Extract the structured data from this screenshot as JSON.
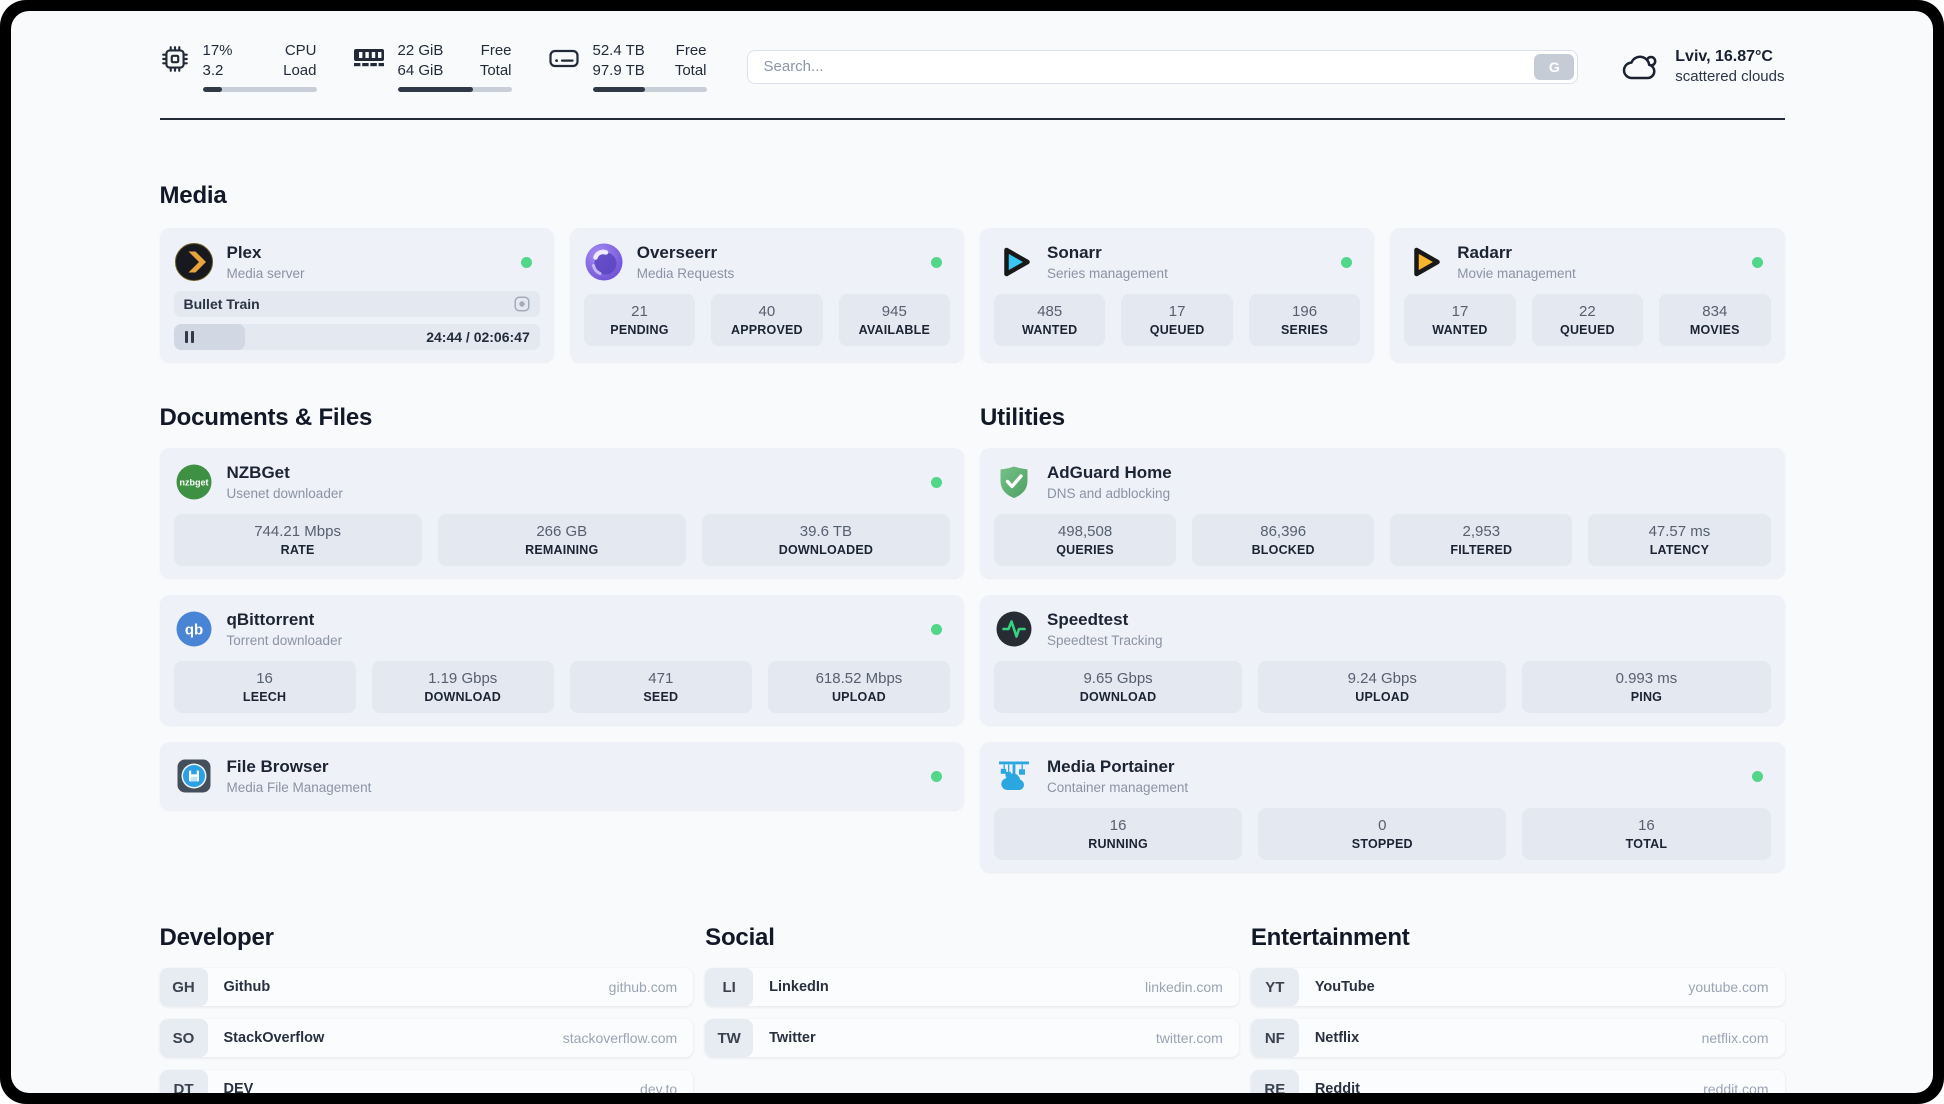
{
  "topbar": {
    "stats": [
      {
        "icon": "cpu-icon",
        "value_top": "17%",
        "value_bottom": "3.2",
        "label_top": "CPU",
        "label_bottom": "Load",
        "progress_pct": 17
      },
      {
        "icon": "memory-icon",
        "value_top": "22 GiB",
        "value_bottom": "64 GiB",
        "label_top": "Free",
        "label_bottom": "Total",
        "progress_pct": 66
      },
      {
        "icon": "disk-icon",
        "value_top": "52.4 TB",
        "value_bottom": "97.9 TB",
        "label_top": "Free",
        "label_bottom": "Total",
        "progress_pct": 46
      }
    ],
    "search": {
      "placeholder": "Search...",
      "button_label": "G"
    },
    "weather": {
      "location": "Lviv, 16.87°C",
      "condition": "scattered clouds"
    }
  },
  "sections": {
    "media": {
      "title": "Media",
      "cards": {
        "plex": {
          "title": "Plex",
          "subtitle": "Media server",
          "online": true,
          "now_playing": {
            "title": "Bullet Train",
            "time": "24:44 / 02:06:47",
            "progress_pct": 19.5,
            "state": "paused"
          }
        },
        "overseerr": {
          "title": "Overseerr",
          "subtitle": "Media Requests",
          "online": true,
          "stats": [
            {
              "value": "21",
              "label": "PENDING"
            },
            {
              "value": "40",
              "label": "APPROVED"
            },
            {
              "value": "945",
              "label": "AVAILABLE"
            }
          ]
        },
        "sonarr": {
          "title": "Sonarr",
          "subtitle": "Series management",
          "online": true,
          "stats": [
            {
              "value": "485",
              "label": "WANTED"
            },
            {
              "value": "17",
              "label": "QUEUED"
            },
            {
              "value": "196",
              "label": "SERIES"
            }
          ]
        },
        "radarr": {
          "title": "Radarr",
          "subtitle": "Movie management",
          "online": true,
          "stats": [
            {
              "value": "17",
              "label": "WANTED"
            },
            {
              "value": "22",
              "label": "QUEUED"
            },
            {
              "value": "834",
              "label": "MOVIES"
            }
          ]
        }
      }
    },
    "documents": {
      "title": "Documents & Files",
      "cards": {
        "nzbget": {
          "title": "NZBGet",
          "subtitle": "Usenet downloader",
          "online": true,
          "stats": [
            {
              "value": "744.21 Mbps",
              "label": "RATE"
            },
            {
              "value": "266 GB",
              "label": "REMAINING"
            },
            {
              "value": "39.6 TB",
              "label": "DOWNLOADED"
            }
          ]
        },
        "qbittorrent": {
          "title": "qBittorrent",
          "subtitle": "Torrent downloader",
          "online": true,
          "stats": [
            {
              "value": "16",
              "label": "LEECH"
            },
            {
              "value": "1.19 Gbps",
              "label": "DOWNLOAD"
            },
            {
              "value": "471",
              "label": "SEED"
            },
            {
              "value": "618.52 Mbps",
              "label": "UPLOAD"
            }
          ]
        },
        "filebrowser": {
          "title": "File Browser",
          "subtitle": "Media File Management",
          "online": true
        }
      }
    },
    "utilities": {
      "title": "Utilities",
      "cards": {
        "adguard": {
          "title": "AdGuard Home",
          "subtitle": "DNS and adblocking",
          "stats": [
            {
              "value": "498,508",
              "label": "QUERIES"
            },
            {
              "value": "86,396",
              "label": "BLOCKED"
            },
            {
              "value": "2,953",
              "label": "FILTERED"
            },
            {
              "value": "47.57 ms",
              "label": "LATENCY"
            }
          ]
        },
        "speedtest": {
          "title": "Speedtest",
          "subtitle": "Speedtest Tracking",
          "stats": [
            {
              "value": "9.65 Gbps",
              "label": "DOWNLOAD"
            },
            {
              "value": "9.24 Gbps",
              "label": "UPLOAD"
            },
            {
              "value": "0.993 ms",
              "label": "PING"
            }
          ]
        },
        "portainer": {
          "title": "Media Portainer",
          "subtitle": "Container management",
          "online": true,
          "stats": [
            {
              "value": "16",
              "label": "RUNNING"
            },
            {
              "value": "0",
              "label": "STOPPED"
            },
            {
              "value": "16",
              "label": "TOTAL"
            }
          ]
        }
      }
    }
  },
  "bookmarks": [
    {
      "title": "Developer",
      "items": [
        {
          "abbr": "GH",
          "name": "Github",
          "url": "github.com"
        },
        {
          "abbr": "SO",
          "name": "StackOverflow",
          "url": "stackoverflow.com"
        },
        {
          "abbr": "DT",
          "name": "DEV",
          "url": "dev.to"
        }
      ]
    },
    {
      "title": "Social",
      "items": [
        {
          "abbr": "LI",
          "name": "LinkedIn",
          "url": "linkedin.com"
        },
        {
          "abbr": "TW",
          "name": "Twitter",
          "url": "twitter.com"
        }
      ]
    },
    {
      "title": "Entertainment",
      "items": [
        {
          "abbr": "YT",
          "name": "YouTube",
          "url": "youtube.com"
        },
        {
          "abbr": "NF",
          "name": "Netflix",
          "url": "netflix.com"
        },
        {
          "abbr": "RE",
          "name": "Reddit",
          "url": "reddit.com"
        }
      ]
    }
  ],
  "colors": {
    "status_online": "#52d68a",
    "progress_fill": "#2f3948",
    "accent_green": "#37d17e"
  }
}
